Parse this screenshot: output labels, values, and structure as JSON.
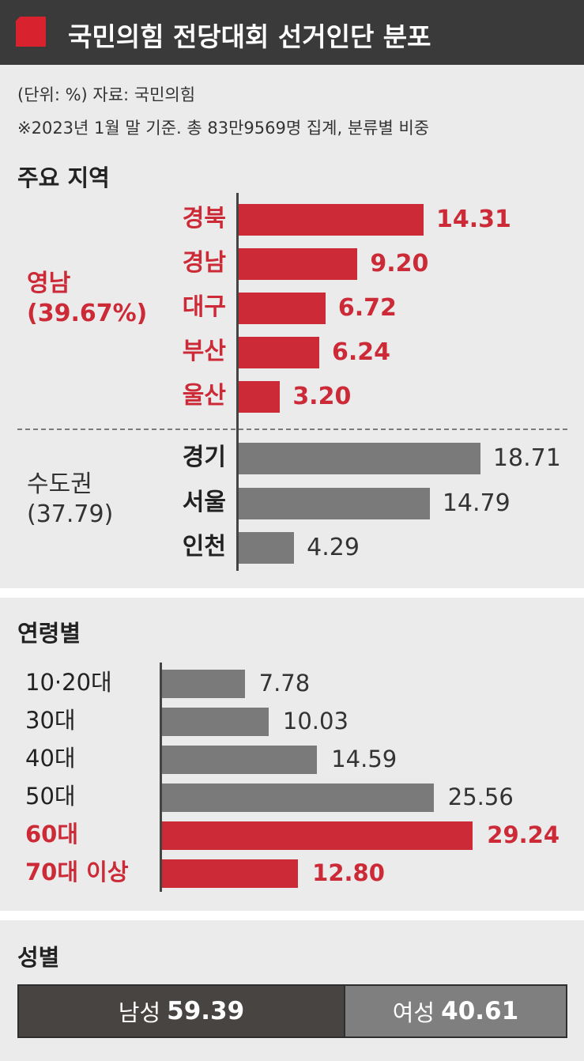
{
  "title": "국민의힘 전당대회 선거인단 분포",
  "unit_line": "(단위: %)  자료: 국민의힘",
  "note_line": "※2023년 1월 말 기준. 총 83만9569명 집계, 분류별 비중",
  "colors": {
    "header_bg": "#3a3a3a",
    "accent_red": "#d8232f",
    "bar_red": "#cc2a37",
    "bar_gray": "#7a7a7a",
    "panel_bg": "#ebebeb"
  },
  "chart_data": [
    {
      "type": "bar",
      "orientation": "horizontal",
      "title": "주요 지역",
      "groups": [
        {
          "name": "영남",
          "total": "(39.67%)",
          "highlight": true
        },
        {
          "name": "수도권",
          "total": "(37.79)",
          "highlight": false
        }
      ],
      "categories": [
        "경북",
        "경남",
        "대구",
        "부산",
        "울산",
        "경기",
        "서울",
        "인천"
      ],
      "values": [
        14.31,
        9.2,
        6.72,
        6.24,
        3.2,
        18.71,
        14.79,
        4.29
      ],
      "value_labels": [
        "14.31",
        "9.20",
        "6.72",
        "6.24",
        "3.20",
        "18.71",
        "14.79",
        "4.29"
      ],
      "highlight": [
        true,
        true,
        true,
        true,
        true,
        false,
        false,
        false
      ],
      "grid": false
    },
    {
      "type": "bar",
      "orientation": "horizontal",
      "title": "연령별",
      "categories": [
        "10·20대",
        "30대",
        "40대",
        "50대",
        "60대",
        "70대 이상"
      ],
      "values": [
        7.78,
        10.03,
        14.59,
        25.56,
        29.24,
        12.8
      ],
      "value_labels": [
        "7.78",
        "10.03",
        "14.59",
        "25.56",
        "29.24",
        "12.80"
      ],
      "highlight": [
        false,
        false,
        false,
        false,
        true,
        true
      ],
      "grid": false
    },
    {
      "type": "bar",
      "orientation": "stacked-horizontal",
      "title": "성별",
      "categories": [
        "남성",
        "여성"
      ],
      "values": [
        59.39,
        40.61
      ],
      "value_labels": [
        "59.39",
        "40.61"
      ]
    }
  ]
}
